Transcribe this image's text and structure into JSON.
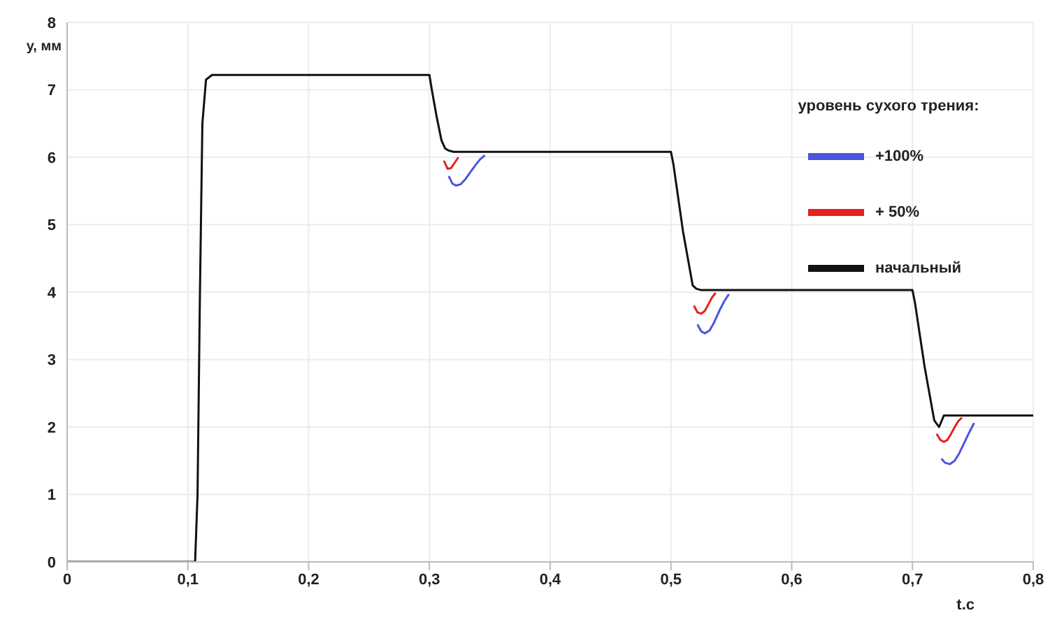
{
  "chart_data": {
    "type": "line",
    "xlabel": "t.c",
    "ylabel": "y, мм",
    "legend_title": "уровень сухого трения:",
    "legend": "top right",
    "grid": true,
    "marker": "none",
    "line_style": "solid",
    "xlim": [
      0,
      0.8
    ],
    "ylim": [
      0,
      8
    ],
    "xticks": [
      {
        "value": 0,
        "label": "0"
      },
      {
        "value": 0.1,
        "label": "0,1"
      },
      {
        "value": 0.2,
        "label": "0,2"
      },
      {
        "value": 0.3,
        "label": "0,3"
      },
      {
        "value": 0.4,
        "label": "0,4"
      },
      {
        "value": 0.5,
        "label": "0,5"
      },
      {
        "value": 0.6,
        "label": "0,6"
      },
      {
        "value": 0.7,
        "label": "0,7"
      },
      {
        "value": 0.8,
        "label": "0,8"
      }
    ],
    "yticks": [
      0,
      1,
      2,
      3,
      4,
      5,
      6,
      7,
      8
    ],
    "series": [
      {
        "name": "+100%",
        "color": "#4a55e0",
        "x": [
          0.316,
          0.319,
          0.322,
          0.326,
          0.33,
          0.334,
          0.338,
          0.342,
          0.346,
          0.4,
          0.522,
          0.525,
          0.528,
          0.532,
          0.536,
          0.54,
          0.544,
          0.548,
          0.6,
          0.724,
          0.727,
          0.731,
          0.735,
          0.739,
          0.743,
          0.747,
          0.751
        ],
        "values": [
          5.72,
          5.61,
          5.58,
          5.6,
          5.68,
          5.78,
          5.88,
          5.97,
          6.03,
          null,
          3.52,
          3.42,
          3.39,
          3.43,
          3.56,
          3.72,
          3.86,
          3.97,
          null,
          1.53,
          1.47,
          1.45,
          1.5,
          1.62,
          1.77,
          1.92,
          2.06
        ]
      },
      {
        "name": "+ 50%",
        "color": "#e82020",
        "x": [
          0.312,
          0.315,
          0.318,
          0.321,
          0.324,
          0.4,
          0.519,
          0.522,
          0.525,
          0.528,
          0.531,
          0.534,
          0.537,
          0.6,
          0.72,
          0.723,
          0.726,
          0.729,
          0.732,
          0.735,
          0.738,
          0.741
        ],
        "values": [
          5.95,
          5.83,
          5.84,
          5.92,
          6.0,
          null,
          3.8,
          3.7,
          3.68,
          3.72,
          3.82,
          3.92,
          3.99,
          null,
          1.9,
          1.81,
          1.78,
          1.81,
          1.9,
          2.0,
          2.09,
          2.14
        ]
      },
      {
        "name": "начальный",
        "color": "#111111",
        "x": [
          0,
          0.106,
          0.108,
          0.11,
          0.112,
          0.115,
          0.12,
          0.3,
          0.302,
          0.306,
          0.31,
          0.313,
          0.316,
          0.32,
          0.5,
          0.502,
          0.51,
          0.518,
          0.521,
          0.525,
          0.7,
          0.702,
          0.71,
          0.718,
          0.722,
          0.726,
          0.8
        ],
        "values": [
          0,
          0,
          1,
          4,
          6.5,
          7.15,
          7.22,
          7.22,
          7.0,
          6.6,
          6.25,
          6.13,
          6.1,
          6.08,
          6.08,
          5.9,
          4.9,
          4.1,
          4.05,
          4.03,
          4.03,
          3.85,
          2.9,
          2.1,
          2.0,
          2.17,
          2.17
        ]
      }
    ]
  }
}
